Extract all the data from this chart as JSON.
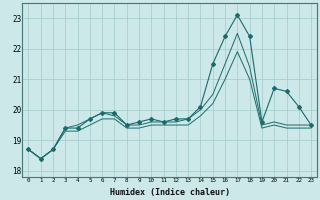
{
  "xlabel": "Humidex (Indice chaleur)",
  "ylabel": "",
  "xlim": [
    -0.5,
    23.5
  ],
  "ylim": [
    17.8,
    23.5
  ],
  "yticks": [
    18,
    19,
    20,
    21,
    22,
    23
  ],
  "xticks": [
    0,
    1,
    2,
    3,
    4,
    5,
    6,
    7,
    8,
    9,
    10,
    11,
    12,
    13,
    14,
    15,
    16,
    17,
    18,
    19,
    20,
    21,
    22,
    23
  ],
  "bg_color": "#cce8e8",
  "grid_color": "#aacfcf",
  "line_color": "#1a6b6b",
  "series": [
    [
      18.7,
      18.4,
      18.7,
      19.4,
      19.4,
      19.7,
      19.9,
      19.9,
      19.5,
      19.6,
      19.7,
      19.6,
      19.7,
      19.7,
      20.1,
      21.5,
      22.4,
      23.1,
      22.4,
      19.6,
      20.7,
      20.6,
      20.1,
      19.5
    ],
    [
      18.7,
      18.4,
      18.7,
      19.4,
      19.5,
      19.7,
      19.9,
      19.8,
      19.5,
      19.5,
      19.6,
      19.6,
      19.6,
      19.7,
      20.0,
      20.5,
      21.5,
      22.5,
      21.4,
      19.5,
      19.6,
      19.5,
      19.5,
      19.5
    ],
    [
      18.7,
      18.4,
      18.7,
      19.3,
      19.3,
      19.5,
      19.7,
      19.7,
      19.4,
      19.4,
      19.5,
      19.5,
      19.5,
      19.5,
      19.8,
      20.2,
      21.0,
      21.9,
      21.0,
      19.4,
      19.5,
      19.4,
      19.4,
      19.4
    ]
  ]
}
